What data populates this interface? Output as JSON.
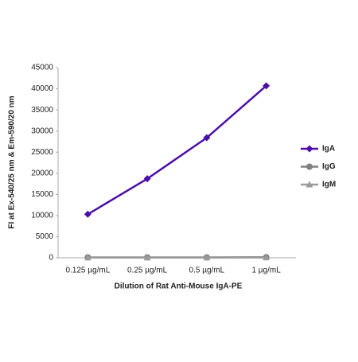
{
  "chart_data": {
    "type": "line",
    "ylabel": "FI at Ex-540/25 nm & Em-590/20 nm",
    "xlabel": "Dilution of Rat Anti-Mouse IgA-PE",
    "categories": [
      "0.125 µg/mL",
      "0.25 µg/mL",
      "0.5 µg/mL",
      "1 µg/mL"
    ],
    "series": [
      {
        "name": "IgA",
        "color": "#4b0fa8",
        "marker": "diamond",
        "values": [
          10300,
          18700,
          28400,
          40700
        ]
      },
      {
        "name": "IgG",
        "color": "#808080",
        "marker": "circle",
        "values": [
          100,
          100,
          100,
          150
        ]
      },
      {
        "name": "IgM",
        "color": "#9a9a9a",
        "marker": "triangle",
        "values": [
          50,
          50,
          50,
          80
        ]
      }
    ],
    "ylim": [
      0,
      45000
    ],
    "yticks": [
      0,
      5000,
      10000,
      15000,
      20000,
      25000,
      30000,
      35000,
      40000,
      45000
    ],
    "grid": false,
    "legend": "right"
  }
}
